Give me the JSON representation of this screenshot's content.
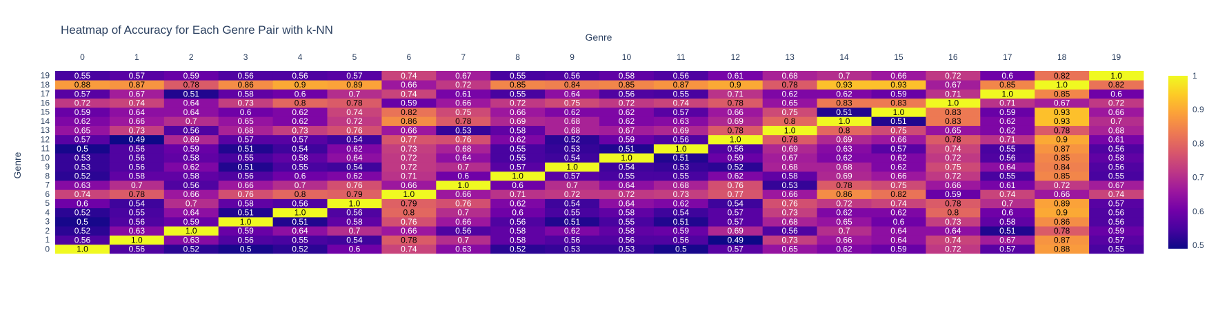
{
  "chart_data": {
    "type": "heatmap",
    "title": "Heatmap of Accuracy for Each Genre Pair with k-NN",
    "xlabel": "Genre",
    "ylabel": "Genre",
    "x": [
      "0",
      "1",
      "2",
      "3",
      "4",
      "5",
      "6",
      "7",
      "8",
      "9",
      "10",
      "11",
      "12",
      "13",
      "14",
      "15",
      "16",
      "17",
      "18",
      "19"
    ],
    "y": [
      "0",
      "1",
      "2",
      "3",
      "4",
      "5",
      "6",
      "7",
      "8",
      "9",
      "10",
      "11",
      "12",
      "13",
      "14",
      "15",
      "16",
      "17",
      "18",
      "19"
    ],
    "z": [
      [
        "1.0",
        "0.56",
        "0.52",
        "0.5",
        "0.52",
        "0.6",
        "0.74",
        "0.63",
        "0.52",
        "0.53",
        "0.53",
        "0.5",
        "0.57",
        "0.65",
        "0.62",
        "0.59",
        "0.72",
        "0.57",
        "0.88",
        "0.55"
      ],
      [
        "0.56",
        "1.0",
        "0.63",
        "0.56",
        "0.55",
        "0.54",
        "0.78",
        "0.7",
        "0.58",
        "0.56",
        "0.56",
        "0.56",
        "0.49",
        "0.73",
        "0.66",
        "0.64",
        "0.74",
        "0.67",
        "0.87",
        "0.57"
      ],
      [
        "0.52",
        "0.63",
        "1.0",
        "0.59",
        "0.64",
        "0.7",
        "0.66",
        "0.56",
        "0.58",
        "0.62",
        "0.58",
        "0.59",
        "0.69",
        "0.56",
        "0.7",
        "0.64",
        "0.64",
        "0.51",
        "0.78",
        "0.59"
      ],
      [
        "0.5",
        "0.56",
        "0.59",
        "1.0",
        "0.51",
        "0.58",
        "0.76",
        "0.66",
        "0.56",
        "0.51",
        "0.55",
        "0.51",
        "0.57",
        "0.68",
        "0.65",
        "0.6",
        "0.73",
        "0.58",
        "0.86",
        "0.56"
      ],
      [
        "0.52",
        "0.55",
        "0.64",
        "0.51",
        "1.0",
        "0.56",
        "0.8",
        "0.7",
        "0.6",
        "0.55",
        "0.58",
        "0.54",
        "0.57",
        "0.73",
        "0.62",
        "0.62",
        "0.8",
        "0.6",
        "0.9",
        "0.56"
      ],
      [
        "0.6",
        "0.54",
        "0.7",
        "0.58",
        "0.56",
        "1.0",
        "0.79",
        "0.76",
        "0.62",
        "0.54",
        "0.64",
        "0.62",
        "0.54",
        "0.76",
        "0.72",
        "0.74",
        "0.78",
        "0.7",
        "0.89",
        "0.57"
      ],
      [
        "0.74",
        "0.78",
        "0.66",
        "0.76",
        "0.8",
        "0.79",
        "1.0",
        "0.66",
        "0.71",
        "0.72",
        "0.72",
        "0.73",
        "0.77",
        "0.66",
        "0.86",
        "0.82",
        "0.59",
        "0.74",
        "0.66",
        "0.74"
      ],
      [
        "0.63",
        "0.7",
        "0.56",
        "0.66",
        "0.7",
        "0.76",
        "0.66",
        "1.0",
        "0.6",
        "0.7",
        "0.64",
        "0.68",
        "0.76",
        "0.53",
        "0.78",
        "0.75",
        "0.66",
        "0.61",
        "0.72",
        "0.67"
      ],
      [
        "0.52",
        "0.58",
        "0.58",
        "0.56",
        "0.6",
        "0.62",
        "0.71",
        "0.6",
        "1.0",
        "0.57",
        "0.55",
        "0.55",
        "0.62",
        "0.58",
        "0.69",
        "0.66",
        "0.72",
        "0.55",
        "0.85",
        "0.55"
      ],
      [
        "0.53",
        "0.56",
        "0.62",
        "0.51",
        "0.55",
        "0.54",
        "0.72",
        "0.7",
        "0.57",
        "1.0",
        "0.54",
        "0.53",
        "0.52",
        "0.68",
        "0.68",
        "0.62",
        "0.75",
        "0.64",
        "0.84",
        "0.56"
      ],
      [
        "0.53",
        "0.56",
        "0.58",
        "0.55",
        "0.58",
        "0.64",
        "0.72",
        "0.64",
        "0.55",
        "0.54",
        "1.0",
        "0.51",
        "0.59",
        "0.67",
        "0.62",
        "0.62",
        "0.72",
        "0.56",
        "0.85",
        "0.58"
      ],
      [
        "0.5",
        "0.56",
        "0.59",
        "0.51",
        "0.54",
        "0.62",
        "0.73",
        "0.68",
        "0.55",
        "0.53",
        "0.51",
        "1.0",
        "0.56",
        "0.69",
        "0.63",
        "0.57",
        "0.74",
        "0.55",
        "0.87",
        "0.56"
      ],
      [
        "0.57",
        "0.49",
        "0.69",
        "0.57",
        "0.57",
        "0.54",
        "0.77",
        "0.76",
        "0.62",
        "0.52",
        "0.59",
        "0.56",
        "1.0",
        "0.78",
        "0.69",
        "0.66",
        "0.78",
        "0.71",
        "0.9",
        "0.61"
      ],
      [
        "0.65",
        "0.73",
        "0.56",
        "0.68",
        "0.73",
        "0.76",
        "0.66",
        "0.53",
        "0.58",
        "0.68",
        "0.67",
        "0.69",
        "0.78",
        "1.0",
        "0.8",
        "0.75",
        "0.65",
        "0.62",
        "0.78",
        "0.68"
      ],
      [
        "0.62",
        "0.66",
        "0.7",
        "0.65",
        "0.62",
        "0.72",
        "0.86",
        "0.78",
        "0.69",
        "0.68",
        "0.62",
        "0.63",
        "0.69",
        "0.8",
        "1.0",
        "0.51",
        "0.83",
        "0.62",
        "0.93",
        "0.7"
      ],
      [
        "0.59",
        "0.64",
        "0.64",
        "0.6",
        "0.62",
        "0.74",
        "0.82",
        "0.75",
        "0.66",
        "0.62",
        "0.62",
        "0.57",
        "0.66",
        "0.75",
        "0.51",
        "1.0",
        "0.83",
        "0.59",
        "0.93",
        "0.66"
      ],
      [
        "0.72",
        "0.74",
        "0.64",
        "0.73",
        "0.8",
        "0.78",
        "0.59",
        "0.66",
        "0.72",
        "0.75",
        "0.72",
        "0.74",
        "0.78",
        "0.65",
        "0.83",
        "0.83",
        "1.0",
        "0.71",
        "0.67",
        "0.72"
      ],
      [
        "0.57",
        "0.67",
        "0.51",
        "0.58",
        "0.6",
        "0.7",
        "0.74",
        "0.61",
        "0.55",
        "0.64",
        "0.56",
        "0.55",
        "0.71",
        "0.62",
        "0.62",
        "0.59",
        "0.71",
        "1.0",
        "0.85",
        "0.6"
      ],
      [
        "0.88",
        "0.87",
        "0.78",
        "0.86",
        "0.9",
        "0.89",
        "0.66",
        "0.72",
        "0.85",
        "0.84",
        "0.85",
        "0.87",
        "0.9",
        "0.78",
        "0.93",
        "0.93",
        "0.67",
        "0.85",
        "1.0",
        "0.82"
      ],
      [
        "0.55",
        "0.57",
        "0.59",
        "0.56",
        "0.56",
        "0.57",
        "0.74",
        "0.67",
        "0.55",
        "0.56",
        "0.58",
        "0.56",
        "0.61",
        "0.68",
        "0.7",
        "0.66",
        "0.72",
        "0.6",
        "0.82",
        "1.0"
      ]
    ],
    "zrange": [
      0.49,
      1.0
    ],
    "colorbar_ticks": [
      "0.5",
      "0.6",
      "0.7",
      "0.8",
      "0.9",
      "1"
    ],
    "colorscale": [
      "#0d0887",
      "#46039f",
      "#7201a8",
      "#9c179e",
      "#bd3786",
      "#d8576b",
      "#ed7953",
      "#fb9f3a",
      "#fdca26",
      "#f0f921"
    ],
    "axis_x_side": "top",
    "grid": false
  }
}
